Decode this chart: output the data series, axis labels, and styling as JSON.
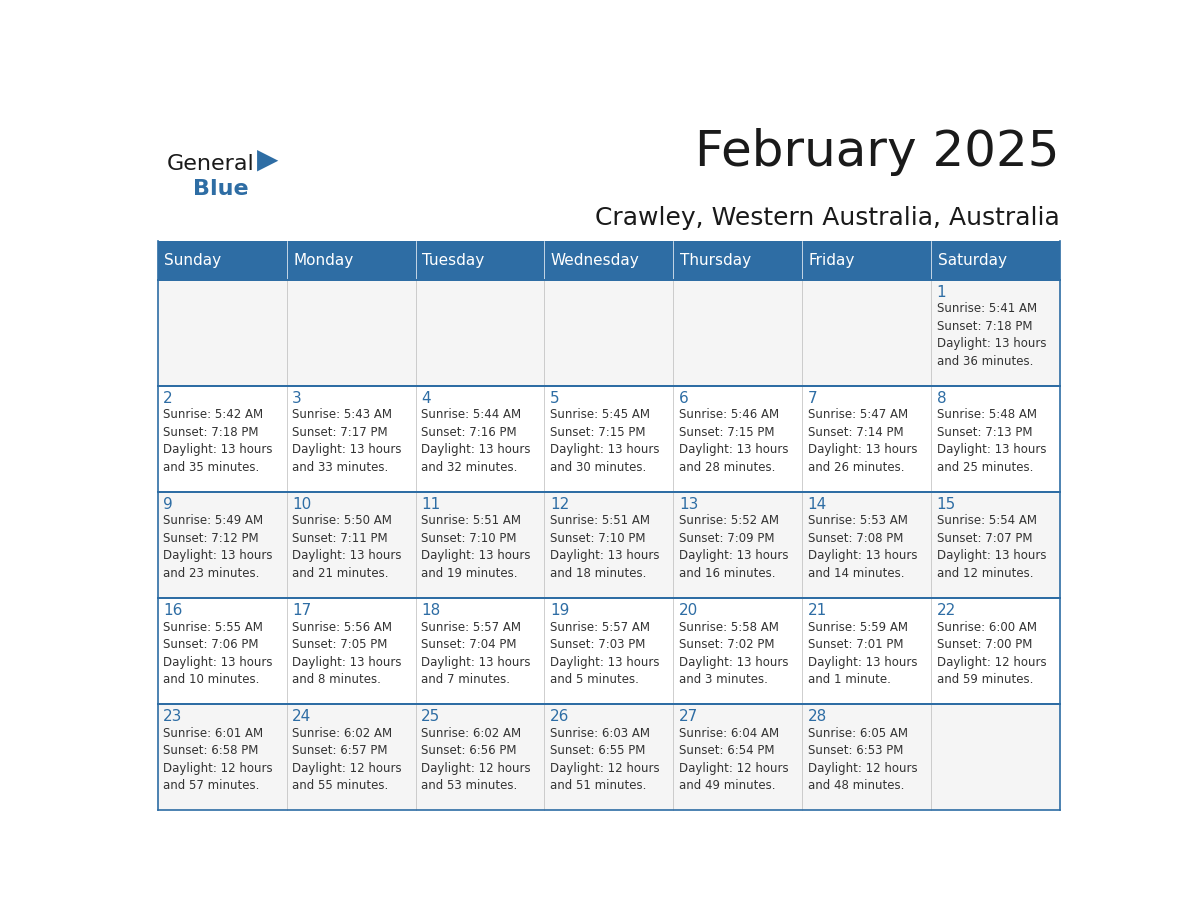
{
  "title": "February 2025",
  "subtitle": "Crawley, Western Australia, Australia",
  "header_bg": "#2E6DA4",
  "header_text_color": "#FFFFFF",
  "day_number_color": "#2E6DA4",
  "info_text_color": "#333333",
  "border_color": "#2E6DA4",
  "days_of_week": [
    "Sunday",
    "Monday",
    "Tuesday",
    "Wednesday",
    "Thursday",
    "Friday",
    "Saturday"
  ],
  "weeks": [
    [
      {
        "day": null,
        "info": ""
      },
      {
        "day": null,
        "info": ""
      },
      {
        "day": null,
        "info": ""
      },
      {
        "day": null,
        "info": ""
      },
      {
        "day": null,
        "info": ""
      },
      {
        "day": null,
        "info": ""
      },
      {
        "day": 1,
        "info": "Sunrise: 5:41 AM\nSunset: 7:18 PM\nDaylight: 13 hours\nand 36 minutes."
      }
    ],
    [
      {
        "day": 2,
        "info": "Sunrise: 5:42 AM\nSunset: 7:18 PM\nDaylight: 13 hours\nand 35 minutes."
      },
      {
        "day": 3,
        "info": "Sunrise: 5:43 AM\nSunset: 7:17 PM\nDaylight: 13 hours\nand 33 minutes."
      },
      {
        "day": 4,
        "info": "Sunrise: 5:44 AM\nSunset: 7:16 PM\nDaylight: 13 hours\nand 32 minutes."
      },
      {
        "day": 5,
        "info": "Sunrise: 5:45 AM\nSunset: 7:15 PM\nDaylight: 13 hours\nand 30 minutes."
      },
      {
        "day": 6,
        "info": "Sunrise: 5:46 AM\nSunset: 7:15 PM\nDaylight: 13 hours\nand 28 minutes."
      },
      {
        "day": 7,
        "info": "Sunrise: 5:47 AM\nSunset: 7:14 PM\nDaylight: 13 hours\nand 26 minutes."
      },
      {
        "day": 8,
        "info": "Sunrise: 5:48 AM\nSunset: 7:13 PM\nDaylight: 13 hours\nand 25 minutes."
      }
    ],
    [
      {
        "day": 9,
        "info": "Sunrise: 5:49 AM\nSunset: 7:12 PM\nDaylight: 13 hours\nand 23 minutes."
      },
      {
        "day": 10,
        "info": "Sunrise: 5:50 AM\nSunset: 7:11 PM\nDaylight: 13 hours\nand 21 minutes."
      },
      {
        "day": 11,
        "info": "Sunrise: 5:51 AM\nSunset: 7:10 PM\nDaylight: 13 hours\nand 19 minutes."
      },
      {
        "day": 12,
        "info": "Sunrise: 5:51 AM\nSunset: 7:10 PM\nDaylight: 13 hours\nand 18 minutes."
      },
      {
        "day": 13,
        "info": "Sunrise: 5:52 AM\nSunset: 7:09 PM\nDaylight: 13 hours\nand 16 minutes."
      },
      {
        "day": 14,
        "info": "Sunrise: 5:53 AM\nSunset: 7:08 PM\nDaylight: 13 hours\nand 14 minutes."
      },
      {
        "day": 15,
        "info": "Sunrise: 5:54 AM\nSunset: 7:07 PM\nDaylight: 13 hours\nand 12 minutes."
      }
    ],
    [
      {
        "day": 16,
        "info": "Sunrise: 5:55 AM\nSunset: 7:06 PM\nDaylight: 13 hours\nand 10 minutes."
      },
      {
        "day": 17,
        "info": "Sunrise: 5:56 AM\nSunset: 7:05 PM\nDaylight: 13 hours\nand 8 minutes."
      },
      {
        "day": 18,
        "info": "Sunrise: 5:57 AM\nSunset: 7:04 PM\nDaylight: 13 hours\nand 7 minutes."
      },
      {
        "day": 19,
        "info": "Sunrise: 5:57 AM\nSunset: 7:03 PM\nDaylight: 13 hours\nand 5 minutes."
      },
      {
        "day": 20,
        "info": "Sunrise: 5:58 AM\nSunset: 7:02 PM\nDaylight: 13 hours\nand 3 minutes."
      },
      {
        "day": 21,
        "info": "Sunrise: 5:59 AM\nSunset: 7:01 PM\nDaylight: 13 hours\nand 1 minute."
      },
      {
        "day": 22,
        "info": "Sunrise: 6:00 AM\nSunset: 7:00 PM\nDaylight: 12 hours\nand 59 minutes."
      }
    ],
    [
      {
        "day": 23,
        "info": "Sunrise: 6:01 AM\nSunset: 6:58 PM\nDaylight: 12 hours\nand 57 minutes."
      },
      {
        "day": 24,
        "info": "Sunrise: 6:02 AM\nSunset: 6:57 PM\nDaylight: 12 hours\nand 55 minutes."
      },
      {
        "day": 25,
        "info": "Sunrise: 6:02 AM\nSunset: 6:56 PM\nDaylight: 12 hours\nand 53 minutes."
      },
      {
        "day": 26,
        "info": "Sunrise: 6:03 AM\nSunset: 6:55 PM\nDaylight: 12 hours\nand 51 minutes."
      },
      {
        "day": 27,
        "info": "Sunrise: 6:04 AM\nSunset: 6:54 PM\nDaylight: 12 hours\nand 49 minutes."
      },
      {
        "day": 28,
        "info": "Sunrise: 6:05 AM\nSunset: 6:53 PM\nDaylight: 12 hours\nand 48 minutes."
      },
      {
        "day": null,
        "info": ""
      }
    ]
  ],
  "logo_general_color": "#1A1A1A",
  "logo_blue_color": "#2E6DA4",
  "title_fontsize": 36,
  "subtitle_fontsize": 18,
  "header_fontsize": 11,
  "day_num_fontsize": 11,
  "info_fontsize": 8.5
}
